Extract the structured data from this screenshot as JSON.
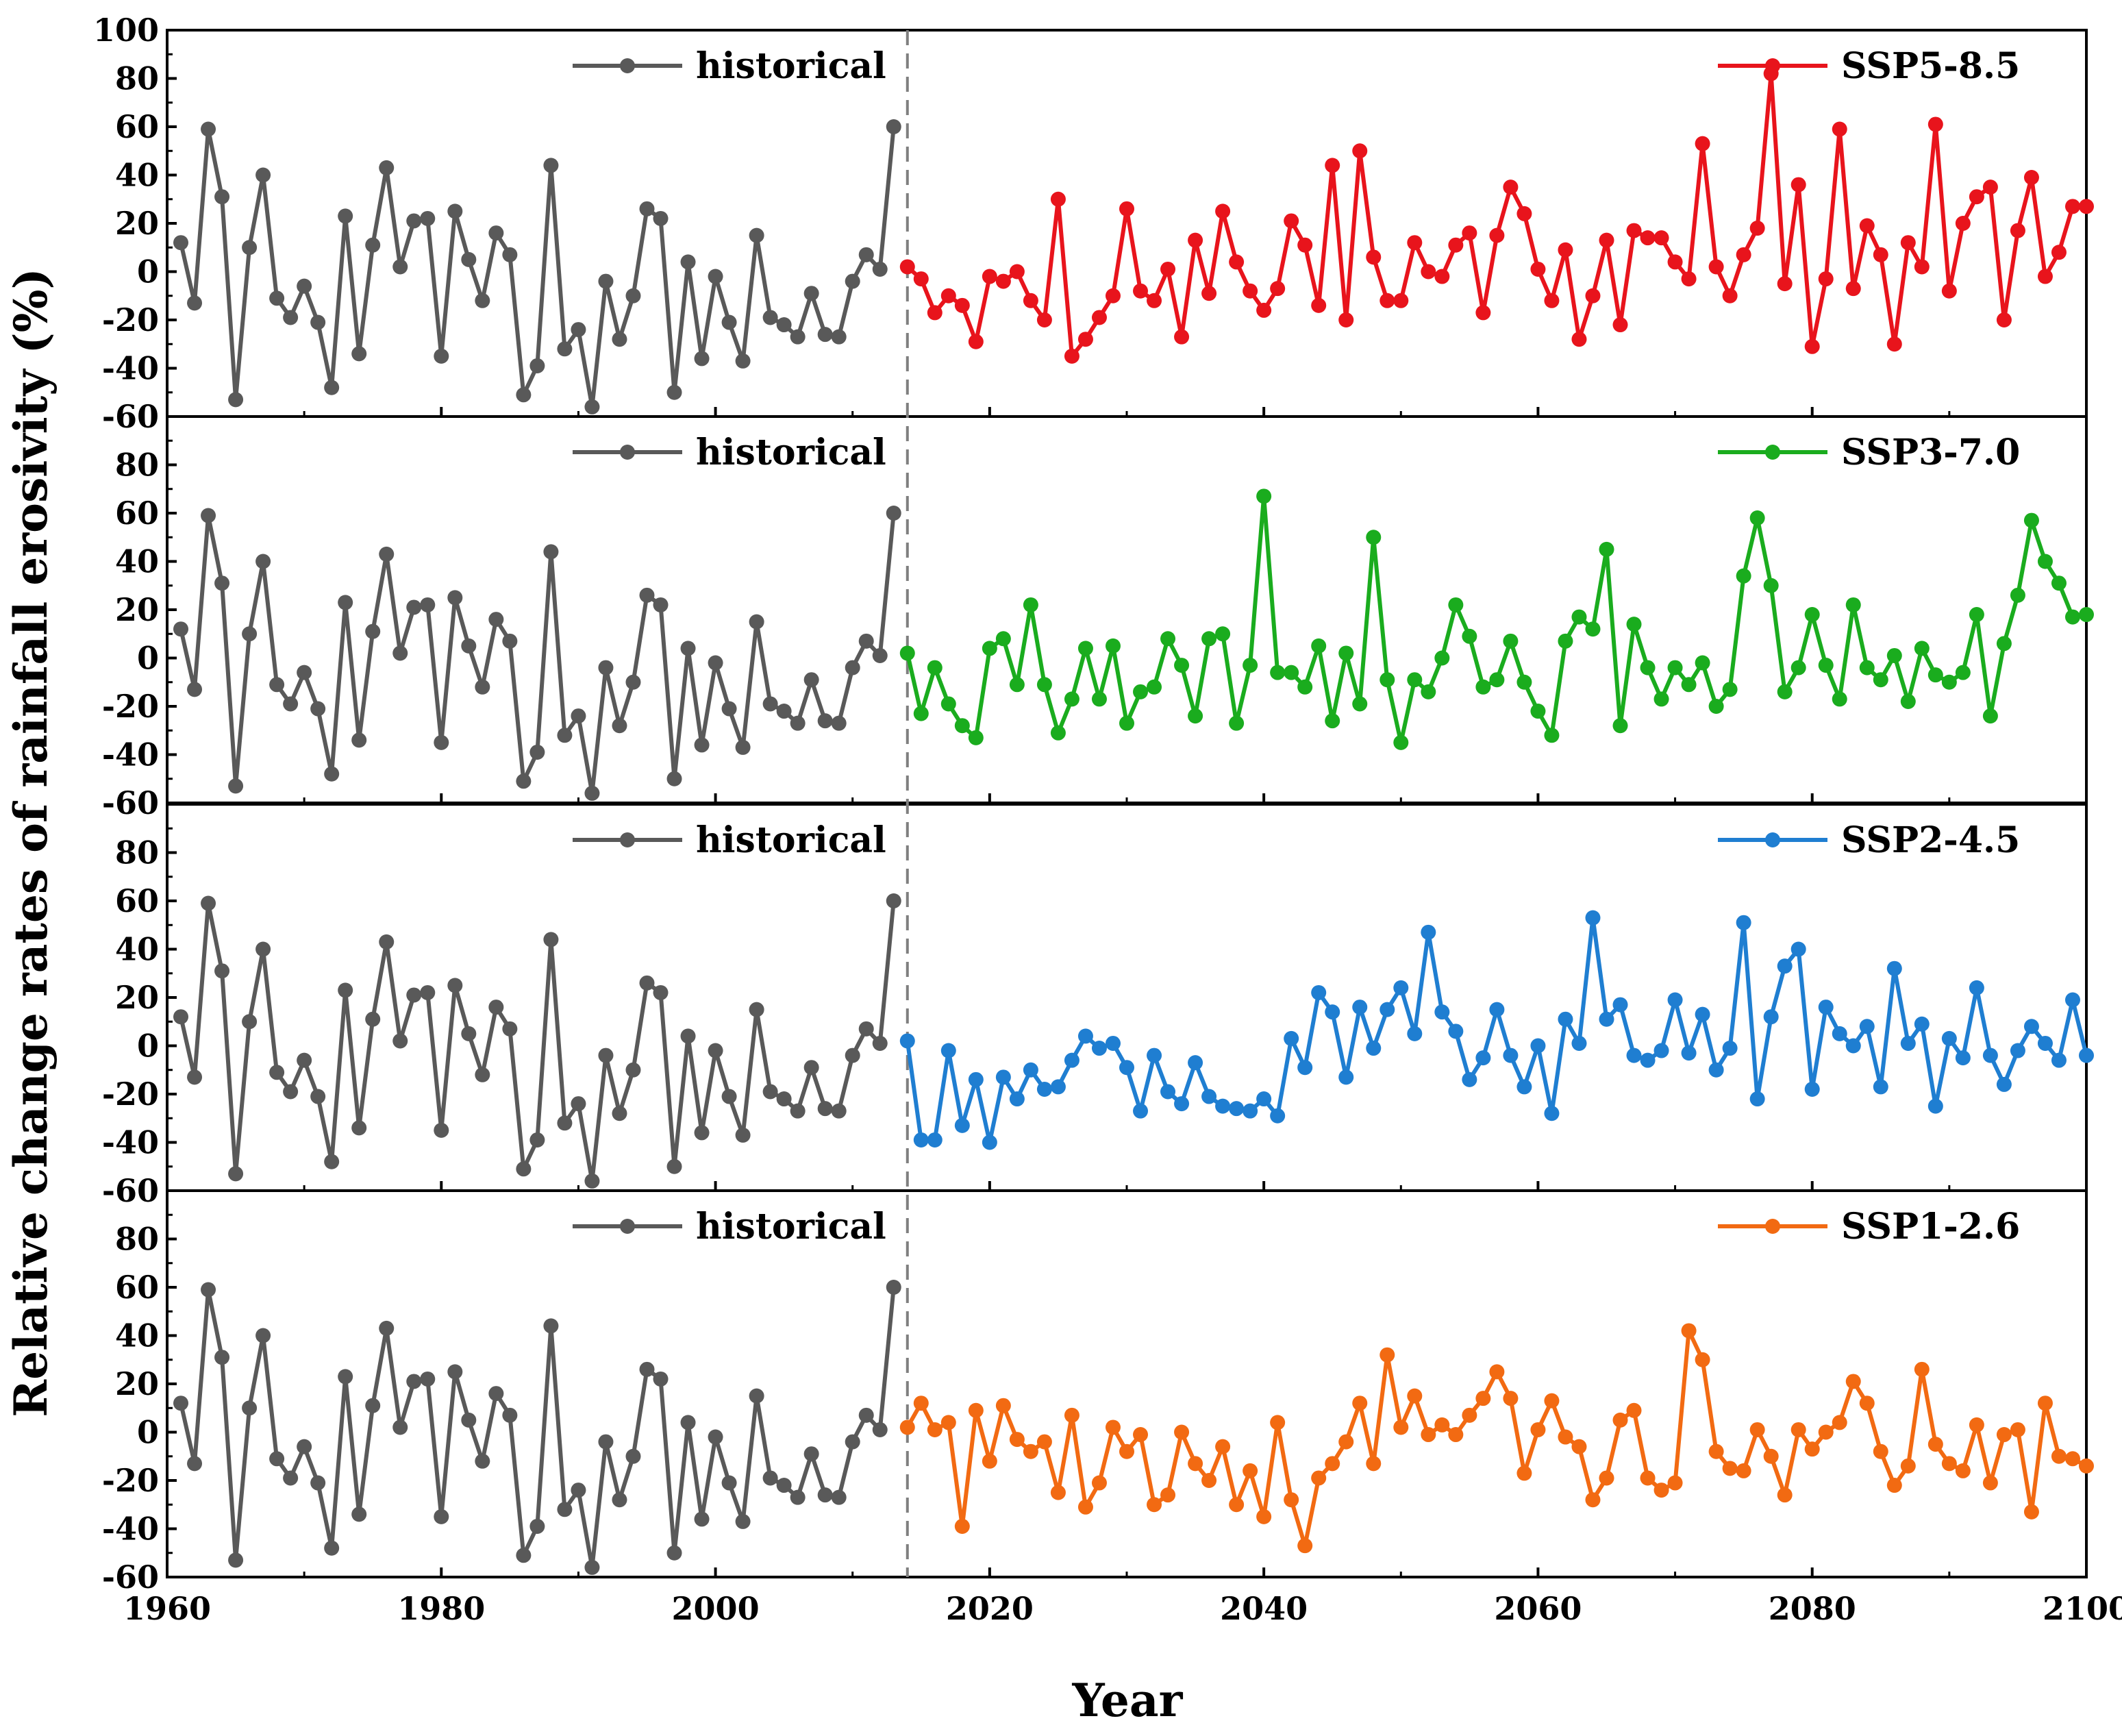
{
  "chart_data": {
    "type": "line",
    "xlabel": "Year",
    "ylabel": "Relative change rates of rainfall erosivity (%)",
    "xlim": [
      1960,
      2100
    ],
    "xticks": [
      1960,
      1980,
      2000,
      2020,
      2040,
      2060,
      2080,
      2100
    ],
    "divider_year": 2014,
    "historical": {
      "name": "historical",
      "color": "#595959",
      "x_start": 1961,
      "values": [
        12,
        -13,
        59,
        31,
        -53,
        10,
        40,
        -11,
        -19,
        -6,
        -21,
        -48,
        23,
        -34,
        11,
        43,
        2,
        21,
        22,
        -35,
        25,
        5,
        -12,
        16,
        7,
        -51,
        -39,
        44,
        -32,
        -24,
        -56,
        -4,
        -28,
        -10,
        26,
        22,
        -50,
        4,
        -36,
        -2,
        -21,
        -37,
        15,
        -19,
        -22,
        -27,
        -9,
        -26,
        -27,
        -4,
        7,
        1,
        60
      ]
    },
    "panels": [
      {
        "name": "SSP5-8.5",
        "color": "#e8141c",
        "ylim": [
          -60,
          100
        ],
        "yticks": [
          -60,
          -40,
          -20,
          0,
          20,
          40,
          60,
          80,
          100
        ],
        "x_start": 2014,
        "values": [
          2,
          -3,
          -17,
          -10,
          -14,
          -29,
          -2,
          -4,
          0,
          -12,
          -20,
          30,
          -35,
          -28,
          -19,
          -10,
          26,
          -8,
          -12,
          1,
          -27,
          13,
          -9,
          25,
          4,
          -8,
          -16,
          -7,
          21,
          11,
          -14,
          44,
          -20,
          50,
          6,
          -12,
          -12,
          12,
          0,
          -2,
          11,
          16,
          -17,
          15,
          35,
          24,
          1,
          -12,
          9,
          -28,
          -10,
          13,
          -22,
          17,
          14,
          14,
          4,
          -3,
          53,
          2,
          -10,
          7,
          18,
          82,
          -5,
          36,
          -31,
          -3,
          59,
          -7,
          19,
          7,
          -30,
          12,
          2,
          61,
          -8,
          20,
          31,
          35,
          -20,
          17,
          39,
          -2,
          8,
          27,
          27
        ]
      },
      {
        "name": "SSP3-7.0",
        "color": "#1aac1e",
        "ylim": [
          -60,
          100
        ],
        "yticks": [
          -60,
          -40,
          -20,
          0,
          20,
          40,
          60,
          80
        ],
        "x_start": 2014,
        "values": [
          2,
          -23,
          -4,
          -19,
          -28,
          -33,
          4,
          8,
          -11,
          22,
          -11,
          -31,
          -17,
          4,
          -17,
          5,
          -27,
          -14,
          -12,
          8,
          -3,
          -24,
          8,
          10,
          -27,
          -3,
          67,
          -6,
          -6,
          -12,
          5,
          -26,
          2,
          -19,
          50,
          -9,
          -35,
          -9,
          -14,
          0,
          22,
          9,
          -12,
          -9,
          7,
          -10,
          -22,
          -32,
          7,
          17,
          12,
          45,
          -28,
          14,
          -4,
          -17,
          -4,
          -11,
          -2,
          -20,
          -13,
          34,
          58,
          30,
          -14,
          -4,
          18,
          -3,
          -17,
          22,
          -4,
          -9,
          1,
          -18,
          4,
          -7,
          -10,
          -6,
          18,
          -24,
          6,
          26,
          57,
          40,
          31,
          17,
          18
        ]
      },
      {
        "name": "SSP2-4.5",
        "color": "#1f7ed1",
        "ylim": [
          -60,
          100
        ],
        "yticks": [
          -60,
          -40,
          -20,
          0,
          20,
          40,
          60,
          80
        ],
        "x_start": 2014,
        "values": [
          2,
          -39,
          -39,
          -2,
          -33,
          -14,
          -40,
          -13,
          -22,
          -10,
          -18,
          -17,
          -6,
          4,
          -1,
          1,
          -9,
          -27,
          -4,
          -19,
          -24,
          -7,
          -21,
          -25,
          -26,
          -27,
          -22,
          -29,
          3,
          -9,
          22,
          14,
          -13,
          16,
          -1,
          15,
          24,
          5,
          47,
          14,
          6,
          -14,
          -5,
          15,
          -4,
          -17,
          0,
          -28,
          11,
          1,
          53,
          11,
          17,
          -4,
          -6,
          -2,
          19,
          -3,
          13,
          -10,
          -1,
          51,
          -22,
          12,
          33,
          40,
          -18,
          16,
          5,
          0,
          8,
          -17,
          32,
          1,
          9,
          -25,
          3,
          -5,
          24,
          -4,
          -16,
          -2,
          8,
          1,
          -6,
          19,
          -4
        ]
      },
      {
        "name": "SSP1-2.6",
        "color": "#f26a12",
        "ylim": [
          -60,
          100
        ],
        "yticks": [
          -60,
          -40,
          -20,
          0,
          20,
          40,
          60,
          80
        ],
        "x_start": 2014,
        "values": [
          2,
          12,
          1,
          4,
          -39,
          9,
          -12,
          11,
          -3,
          -8,
          -4,
          -25,
          7,
          -31,
          -21,
          2,
          -8,
          -1,
          -30,
          -26,
          0,
          -13,
          -20,
          -6,
          -30,
          -16,
          -35,
          4,
          -28,
          -47,
          -19,
          -13,
          -4,
          12,
          -13,
          32,
          2,
          15,
          -1,
          3,
          -1,
          7,
          14,
          25,
          14,
          -17,
          1,
          13,
          -2,
          -6,
          -28,
          -19,
          5,
          9,
          -19,
          -24,
          -21,
          42,
          30,
          -8,
          -15,
          -16,
          1,
          -10,
          -26,
          1,
          -7,
          0,
          4,
          21,
          12,
          -8,
          -22,
          -14,
          26,
          -5,
          -13,
          -16,
          3,
          -21,
          -1,
          1,
          -33,
          12,
          -10,
          -11,
          -14
        ]
      }
    ]
  }
}
